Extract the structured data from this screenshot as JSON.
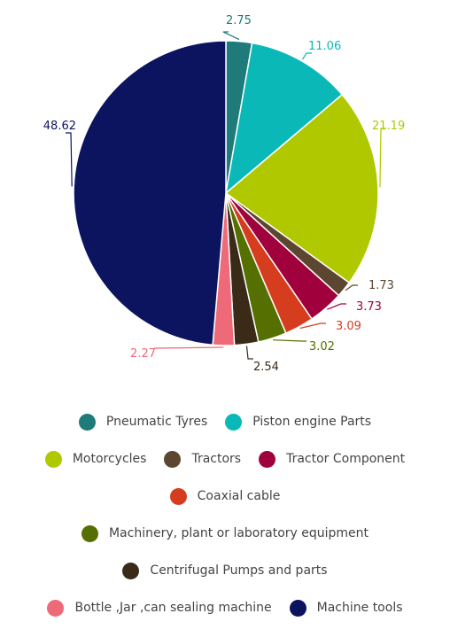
{
  "chart_data": {
    "type": "pie",
    "title": "",
    "start_angle_deg": 0,
    "direction": "clockwise",
    "slices": [
      {
        "label": "Pneumatic Tyres",
        "value": 2.75,
        "display": "2.75",
        "color": "#1f7a7a"
      },
      {
        "label": "Piston engine Parts",
        "value": 11.06,
        "display": "11.06",
        "color": "#0bb8b8"
      },
      {
        "label": "Motorcycles",
        "value": 21.19,
        "display": "21.19",
        "color": "#b0c800"
      },
      {
        "label": "Tractors",
        "value": 1.73,
        "display": "1.73",
        "color": "#5c4630"
      },
      {
        "label": "Tractor Component",
        "value": 3.73,
        "display": "3.73",
        "color": "#a0003c"
      },
      {
        "label": "Coaxial cable",
        "value": 3.09,
        "display": "3.09",
        "color": "#d63c1e"
      },
      {
        "label": "Machinery, plant or laboratory equipment",
        "value": 3.02,
        "display": "3.02",
        "color": "#557000"
      },
      {
        "label": "Centrifugal Pumps and parts",
        "value": 2.54,
        "display": "2.54",
        "color": "#3a2a18"
      },
      {
        "label": "Bottle ,Jar ,can sealing machine",
        "value": 2.27,
        "display": "2.27",
        "color": "#ef6a78"
      },
      {
        "label": "Machine tools",
        "value": 48.62,
        "display": "48.62",
        "color": "#0c1460"
      }
    ]
  },
  "legend": {
    "rows": [
      [
        0,
        1
      ],
      [
        2,
        3,
        4
      ],
      [
        5
      ],
      [
        6
      ],
      [
        7
      ],
      [
        8,
        9
      ]
    ]
  }
}
